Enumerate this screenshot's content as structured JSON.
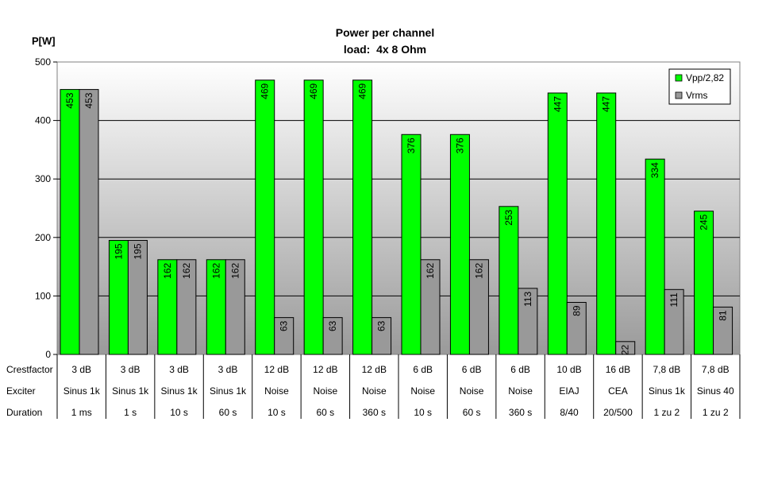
{
  "chart_data": {
    "type": "bar",
    "title": "Power per channel",
    "subtitle": "load:  4x 8 Ohm",
    "ylabel": "P[W]",
    "ylim": [
      0,
      500
    ],
    "yticks": [
      0,
      100,
      200,
      300,
      400,
      500
    ],
    "grid": true,
    "legend_position": "top-right",
    "series": [
      {
        "name": "Vpp/2,82",
        "color": "#00ff00",
        "values": [
          453,
          195,
          162,
          162,
          469,
          469,
          469,
          376,
          376,
          253,
          447,
          447,
          334,
          245
        ]
      },
      {
        "name": "Vrms",
        "color": "#999999",
        "values": [
          453,
          195,
          162,
          162,
          63,
          63,
          63,
          162,
          162,
          113,
          89,
          22,
          111,
          81
        ]
      }
    ],
    "table": {
      "row_labels": [
        "Crestfactor",
        "Exciter",
        "Duration"
      ],
      "rows": [
        [
          "3 dB",
          "3 dB",
          "3 dB",
          "3 dB",
          "12 dB",
          "12 dB",
          "12 dB",
          "6 dB",
          "6 dB",
          "6 dB",
          "10 dB",
          "16 dB",
          "7,8 dB",
          "7,8 dB"
        ],
        [
          "Sinus 1k",
          "Sinus 1k",
          "Sinus 1k",
          "Sinus 1k",
          "Noise",
          "Noise",
          "Noise",
          "Noise",
          "Noise",
          "Noise",
          "EIAJ",
          "CEA",
          "Sinus 1k",
          "Sinus 40"
        ],
        [
          "1 ms",
          "1 s",
          "10 s",
          "60 s",
          "10 s",
          "60 s",
          "360 s",
          "10 s",
          "60 s",
          "360 s",
          "8/40",
          "20/500",
          "1 zu 2",
          "1 zu 2"
        ]
      ]
    }
  }
}
